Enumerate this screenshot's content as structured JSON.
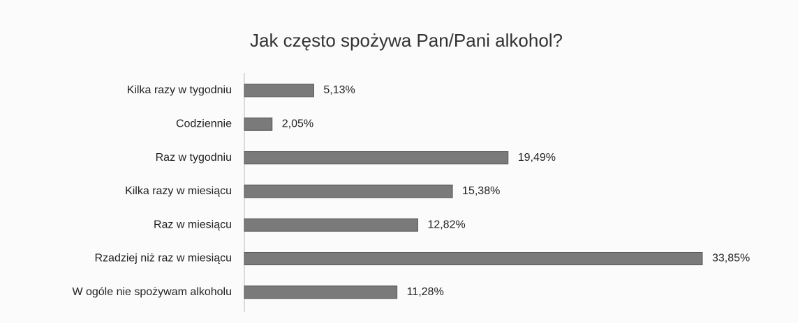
{
  "chart_data": {
    "type": "bar",
    "orientation": "horizontal",
    "title": "Jak często spożywa Pan/Pani alkohol?",
    "categories": [
      "Kilka razy w tygodniu",
      "Codziennie",
      "Raz w tygodniu",
      "Kilka razy w miesiącu",
      "Raz w miesiącu",
      "Rzadziej niż raz w miesiącu",
      "W ogóle nie spożywam alkoholu"
    ],
    "values": [
      5.13,
      2.05,
      19.49,
      15.38,
      12.82,
      33.85,
      11.28
    ],
    "value_labels": [
      "5,13%",
      "2,05%",
      "19,49%",
      "15,38%",
      "12,82%",
      "33,85%",
      "11,28%"
    ],
    "color": "#7a7a7a"
  }
}
